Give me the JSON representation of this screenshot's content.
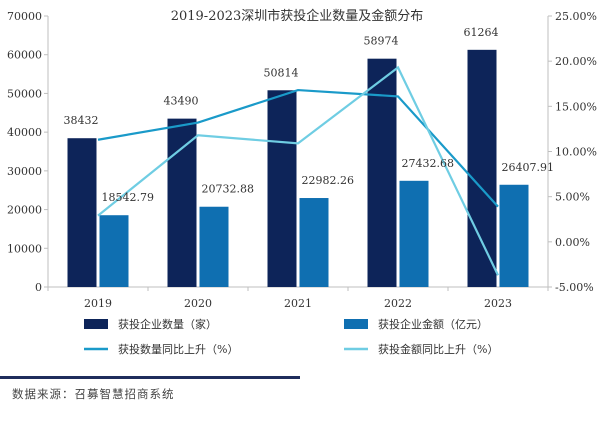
{
  "chart_data": {
    "type": "bar",
    "title": "2019-2023深圳市获投企业数量及金额分布",
    "categories": [
      "2019",
      "2020",
      "2021",
      "2022",
      "2023"
    ],
    "series": [
      {
        "name": "获投企业数量（家）",
        "kind": "bar",
        "axis": "left",
        "color": "#0d2459",
        "values": [
          38432,
          43490,
          50814,
          58974,
          61264
        ],
        "labels": [
          "38432",
          "43490",
          "50814",
          "58974",
          "61264"
        ]
      },
      {
        "name": "获投企业金额（亿元）",
        "kind": "bar",
        "axis": "left",
        "color": "#0f6fb1",
        "values": [
          18542.79,
          20732.88,
          22982.26,
          27432.68,
          26407.91
        ],
        "labels": [
          "18542.79",
          "20732.88",
          "22982.26",
          "27432.68",
          "26407.91"
        ]
      },
      {
        "name": "获投数量同比上升（%）",
        "kind": "line",
        "axis": "right",
        "color": "#1a9ac9",
        "values": [
          11.3,
          13.2,
          16.8,
          16.1,
          3.9
        ]
      },
      {
        "name": "获投金额同比上升（%）",
        "kind": "line",
        "axis": "right",
        "color": "#6fcde3",
        "values": [
          2.9,
          11.8,
          10.9,
          19.3,
          -3.7
        ]
      }
    ],
    "left_axis": {
      "min": 0,
      "max": 70000,
      "ticks": [
        0,
        10000,
        20000,
        30000,
        40000,
        50000,
        60000,
        70000
      ],
      "tick_labels": [
        "0",
        "10000",
        "20000",
        "30000",
        "40000",
        "50000",
        "60000",
        "70000"
      ]
    },
    "right_axis": {
      "min": -5,
      "max": 25,
      "ticks": [
        -5,
        0,
        5,
        10,
        15,
        20,
        25
      ],
      "tick_labels": [
        "-5.00%",
        "0.00%",
        "5.00%",
        "10.00%",
        "15.00%",
        "20.00%",
        "25.00%"
      ]
    },
    "grid": false,
    "legend_position": "bottom"
  },
  "source_text": "数据来源：召募智慧招商系统"
}
